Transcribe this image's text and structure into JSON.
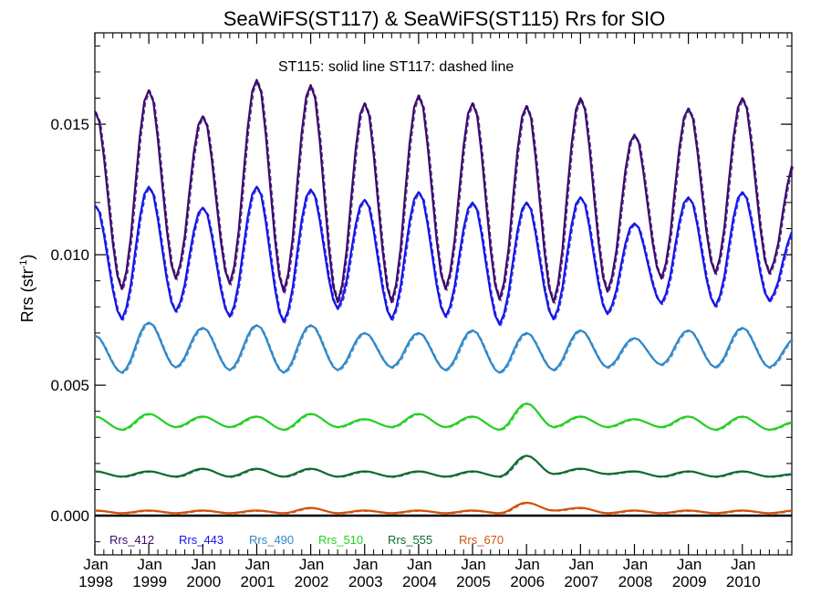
{
  "chart_data": {
    "type": "line",
    "title": "SeaWiFS(ST117) & SeaWiFS(ST115)  Rrs for SIO",
    "ylabel": "Rrs (str",
    "ylabel_sup": "-1",
    "ylabel_close": ")",
    "annotation": "ST115: solid line   ST117: dashed line",
    "xlim": [
      "1998-01",
      "2010-12"
    ],
    "ylim": [
      -0.0015,
      0.0185
    ],
    "yticks": [
      0.0,
      0.005,
      0.01,
      0.015
    ],
    "ytick_labels": [
      "0.000",
      "0.005",
      "0.010",
      "0.015"
    ],
    "xticks": [
      {
        "month": "Jan",
        "year": "1998"
      },
      {
        "month": "Jan",
        "year": "1999"
      },
      {
        "month": "Jan",
        "year": "2000"
      },
      {
        "month": "Jan",
        "year": "2001"
      },
      {
        "month": "Jan",
        "year": "2002"
      },
      {
        "month": "Jan",
        "year": "2003"
      },
      {
        "month": "Jan",
        "year": "2004"
      },
      {
        "month": "Jan",
        "year": "2005"
      },
      {
        "month": "Jan",
        "year": "2006"
      },
      {
        "month": "Jan",
        "year": "2007"
      },
      {
        "month": "Jan",
        "year": "2008"
      },
      {
        "month": "Jan",
        "year": "2009"
      },
      {
        "month": "Jan",
        "year": "2010"
      }
    ],
    "zero_line": true,
    "legend_position": "bottom-left",
    "series": [
      {
        "name": "Rrs_412",
        "color": "#3a0a6e",
        "winter": [
          0.0155,
          0.0163,
          0.0153,
          0.0167,
          0.0165,
          0.0158,
          0.0161,
          0.0158,
          0.0157,
          0.016,
          0.0146,
          0.0156,
          0.016,
          0.0136
        ],
        "summer": [
          0.0088,
          0.0092,
          0.009,
          0.0087,
          0.0083,
          0.0083,
          0.0088,
          0.0084,
          0.0083,
          0.0087,
          0.0092,
          0.0094,
          0.0094
        ]
      },
      {
        "name": "Rrs_443",
        "color": "#1414e6",
        "winter": [
          0.0119,
          0.0126,
          0.0118,
          0.0126,
          0.0125,
          0.0121,
          0.0124,
          0.012,
          0.012,
          0.0122,
          0.0112,
          0.0122,
          0.0124,
          0.011
        ],
        "summer": [
          0.0076,
          0.0079,
          0.0077,
          0.0075,
          0.008,
          0.0076,
          0.0077,
          0.0074,
          0.0076,
          0.0078,
          0.0082,
          0.0081,
          0.0083
        ]
      },
      {
        "name": "Rrs_490",
        "color": "#2f87c8",
        "winter": [
          0.0069,
          0.0074,
          0.0072,
          0.0073,
          0.0073,
          0.007,
          0.007,
          0.0071,
          0.007,
          0.0071,
          0.0068,
          0.0071,
          0.0072,
          0.0068
        ],
        "summer": [
          0.0055,
          0.0057,
          0.0056,
          0.0055,
          0.0056,
          0.0057,
          0.0056,
          0.0055,
          0.0056,
          0.0057,
          0.0058,
          0.0057,
          0.0057
        ]
      },
      {
        "name": "Rrs_510",
        "color": "#22d022",
        "winter": [
          0.0038,
          0.0039,
          0.0038,
          0.0038,
          0.0039,
          0.0037,
          0.0039,
          0.0038,
          0.0043,
          0.0038,
          0.0037,
          0.0038,
          0.0038,
          0.0036
        ],
        "summer": [
          0.0033,
          0.0034,
          0.0034,
          0.0033,
          0.0034,
          0.0034,
          0.0034,
          0.0033,
          0.0034,
          0.0034,
          0.0034,
          0.0033,
          0.0033
        ]
      },
      {
        "name": "Rrs_555",
        "color": "#0e6b32",
        "winter": [
          0.0017,
          0.0017,
          0.0018,
          0.0018,
          0.0018,
          0.0017,
          0.0017,
          0.0017,
          0.0023,
          0.0018,
          0.0017,
          0.0017,
          0.0017,
          0.0016
        ],
        "summer": [
          0.0015,
          0.0015,
          0.0015,
          0.0015,
          0.0015,
          0.0015,
          0.0015,
          0.0015,
          0.0016,
          0.0016,
          0.0015,
          0.0015,
          0.0015
        ]
      },
      {
        "name": "Rrs_670",
        "color": "#d0520c",
        "winter": [
          0.0002,
          0.0002,
          0.0002,
          0.0002,
          0.0003,
          0.0002,
          0.0002,
          0.0002,
          0.0005,
          0.0003,
          0.0002,
          0.0002,
          0.0002,
          0.0002
        ],
        "summer": [
          0.0001,
          0.0001,
          0.0001,
          0.0001,
          0.0001,
          0.0001,
          0.0001,
          0.0001,
          0.0002,
          0.0001,
          0.0001,
          0.0001,
          0.0001
        ]
      }
    ]
  }
}
